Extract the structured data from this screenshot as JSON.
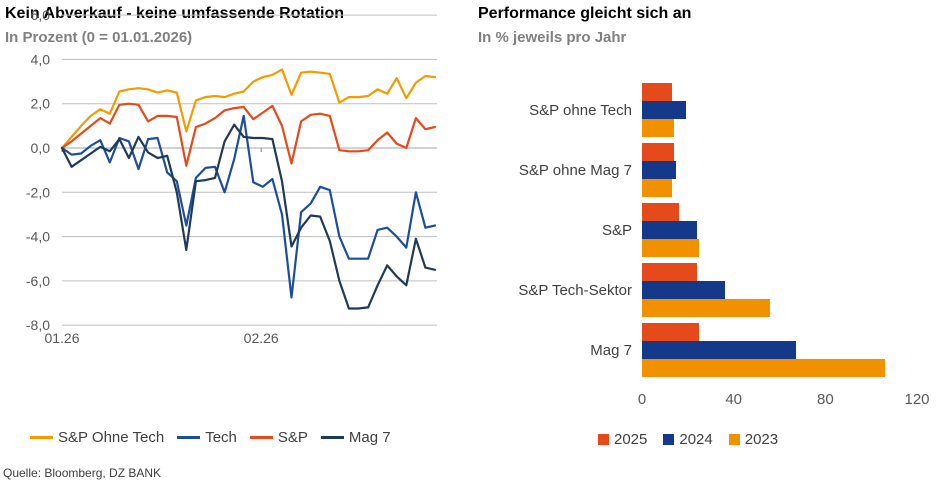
{
  "source": "Quelle: Bloomberg, DZ BANK",
  "chart_data": [
    {
      "type": "line",
      "title": "Kein Abverkauf - keine umfassende Rotation",
      "subtitle": "In Prozent (0 = 01.01.2026)",
      "xlabel": "",
      "ylabel": "",
      "ylim": [
        -8,
        6
      ],
      "grid": true,
      "legend_position": "bottom",
      "grid_color": "#BFBFBF",
      "axis_text_color": "#595959",
      "yticks": [
        {
          "v": 6,
          "label": "6,0"
        },
        {
          "v": 4,
          "label": "4,0"
        },
        {
          "v": 2,
          "label": "2,0"
        },
        {
          "v": 0,
          "label": "0,0"
        },
        {
          "v": -2,
          "label": "-2,0"
        },
        {
          "v": -4,
          "label": "-4,0"
        },
        {
          "v": -6,
          "label": "-6,0"
        },
        {
          "v": -8,
          "label": "-8,0"
        }
      ],
      "xticks": [
        {
          "pos": 0.0,
          "label": "01.26"
        },
        {
          "pos": 0.534,
          "label": "02.26"
        }
      ],
      "series": [
        {
          "name": "S&P Ohne Tech",
          "color": "#F49B00",
          "values": [
            0.0,
            0.5,
            1.0,
            1.45,
            1.75,
            1.55,
            2.55,
            2.65,
            2.7,
            2.65,
            2.5,
            2.6,
            2.5,
            0.75,
            2.15,
            2.3,
            2.35,
            2.3,
            2.45,
            2.55,
            3.0,
            3.2,
            3.3,
            3.55,
            2.4,
            3.4,
            3.45,
            3.4,
            3.35,
            2.05,
            2.3,
            2.3,
            2.35,
            2.65,
            2.45,
            3.15,
            2.25,
            2.95,
            3.25,
            3.2
          ]
        },
        {
          "name": "Tech",
          "color": "#1C4EA0",
          "values": [
            0.0,
            -0.3,
            -0.25,
            0.1,
            0.35,
            -0.65,
            0.45,
            0.3,
            -0.95,
            0.4,
            0.45,
            -1.1,
            -1.5,
            -3.5,
            -1.35,
            -0.9,
            -0.85,
            -2.0,
            -0.5,
            1.45,
            -1.55,
            -1.75,
            -1.4,
            -3.0,
            -6.75,
            -2.9,
            -2.5,
            -1.75,
            -1.9,
            -4.0,
            -5.0,
            -5.0,
            -5.0,
            -3.7,
            -3.6,
            -4.0,
            -4.5,
            -2.0,
            -3.6,
            -3.5
          ]
        },
        {
          "name": "S&P",
          "color": "#E54A1B",
          "values": [
            0.0,
            0.3,
            0.65,
            1.0,
            1.35,
            1.1,
            1.95,
            2.0,
            1.95,
            1.2,
            1.45,
            1.45,
            1.4,
            -0.8,
            0.95,
            1.1,
            1.35,
            1.7,
            1.8,
            1.85,
            1.3,
            1.6,
            1.9,
            1.0,
            -0.7,
            1.2,
            1.5,
            1.55,
            1.45,
            -0.1,
            -0.15,
            -0.15,
            -0.1,
            0.35,
            0.7,
            0.2,
            0.0,
            1.35,
            0.85,
            0.95
          ]
        },
        {
          "name": "Mag 7",
          "color": "#1F3A58",
          "values": [
            0.0,
            -0.85,
            -0.55,
            -0.25,
            0.05,
            -0.15,
            0.4,
            -0.45,
            0.5,
            -0.2,
            -0.45,
            -0.35,
            -2.0,
            -4.6,
            -1.5,
            -1.45,
            -1.35,
            0.3,
            1.05,
            0.5,
            0.45,
            0.45,
            0.4,
            -1.5,
            -4.45,
            -3.6,
            -3.05,
            -3.1,
            -4.2,
            -6.0,
            -7.25,
            -7.25,
            -7.2,
            -6.2,
            -5.3,
            -5.8,
            -6.2,
            -4.1,
            -5.4,
            -5.5
          ]
        }
      ]
    },
    {
      "type": "bar",
      "orientation": "horizontal",
      "title": "Performance gleicht sich an",
      "subtitle": "In % jeweils pro Jahr",
      "xlabel": "",
      "ylabel": "",
      "xlim": [
        0,
        120
      ],
      "xticks": [
        0,
        40,
        80,
        120
      ],
      "legend_position": "bottom",
      "categories": [
        "S&P ohne Tech",
        "S&P ohne Mag 7",
        "S&P",
        "S&P Tech-Sektor",
        "Mag 7"
      ],
      "series": [
        {
          "name": "2025",
          "color": "#E54A1B",
          "values": [
            13,
            14,
            16,
            24,
            25
          ]
        },
        {
          "name": "2024",
          "color": "#14388A",
          "values": [
            19,
            15,
            24,
            36,
            67
          ]
        },
        {
          "name": "2023",
          "color": "#F29100",
          "values": [
            14,
            13,
            25,
            56,
            106
          ]
        }
      ]
    }
  ]
}
